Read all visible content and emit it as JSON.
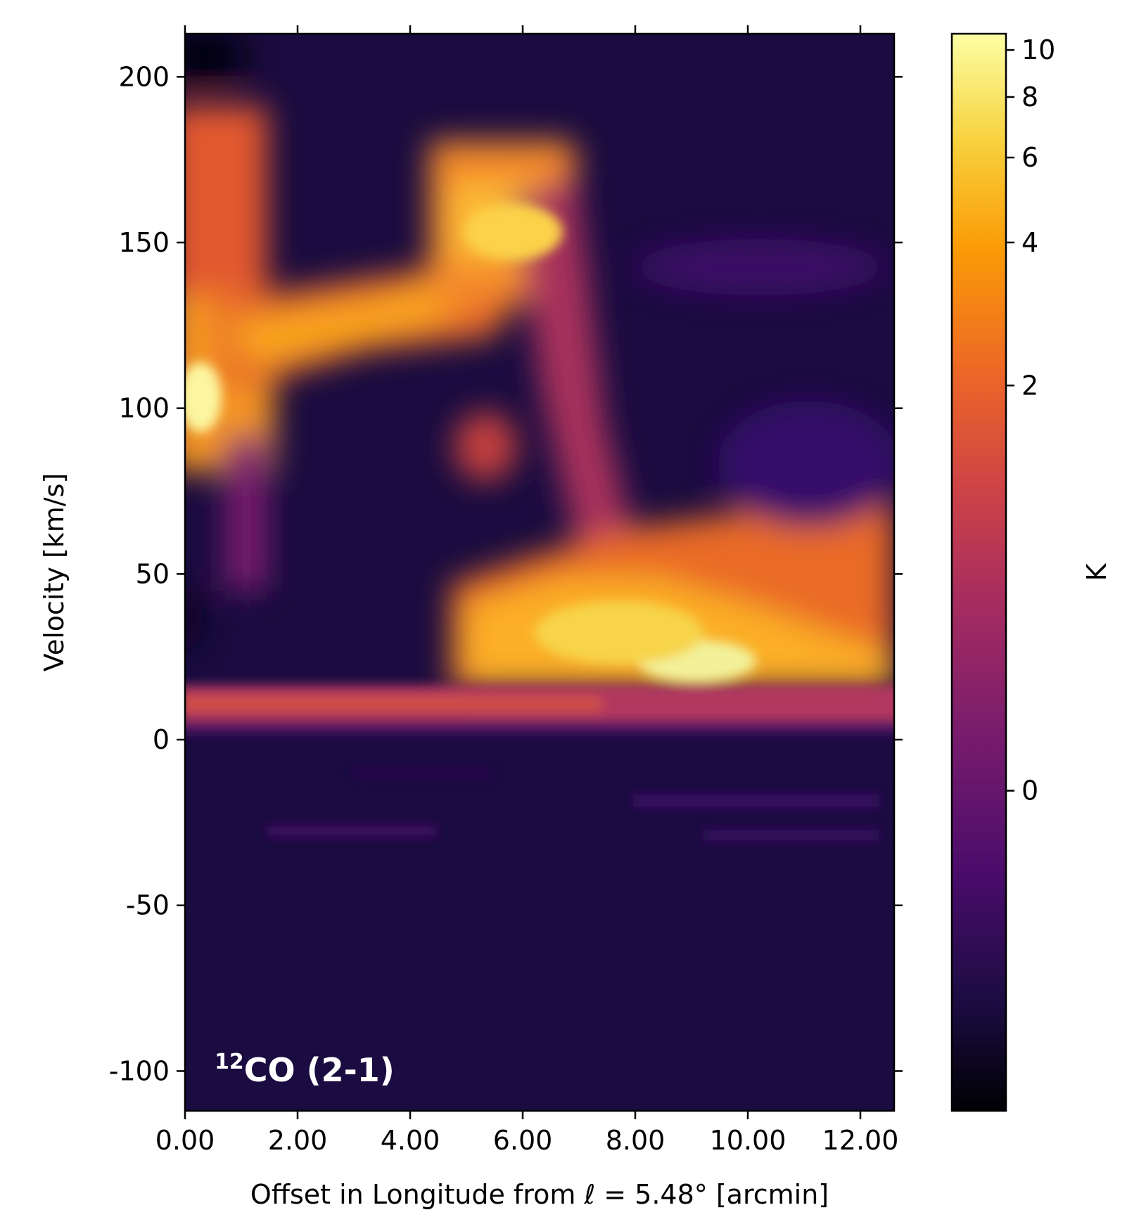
{
  "chart_data": {
    "type": "heatmap",
    "title": "",
    "xlabel_prefix": "Offset in Longitude from ",
    "xlabel_symbol": "ℓ",
    "xlabel_suffix": " = 5.48° [arcmin]",
    "ylabel": "Velocity [km/s]",
    "colorbar_label": "K",
    "annotation": {
      "sup": "12",
      "text": "CO (2-1)"
    },
    "xlim": [
      0.0,
      12.6
    ],
    "ylim": [
      -112,
      213
    ],
    "x_ticks": [
      "0.00",
      "2.00",
      "4.00",
      "6.00",
      "8.00",
      "10.00",
      "12.00"
    ],
    "x_tick_values": [
      0,
      2,
      4,
      6,
      8,
      10,
      12
    ],
    "y_ticks": [
      "200",
      "150",
      "100",
      "50",
      "0",
      "-50",
      "-100"
    ],
    "y_tick_values": [
      200,
      150,
      100,
      50,
      0,
      -50,
      -100
    ],
    "colorbar_ticks": [
      "10",
      "8",
      "6",
      "4",
      "2",
      "0"
    ],
    "colorbar_tick_values": [
      10,
      8,
      6,
      4,
      2,
      0
    ],
    "colorbar_range": [
      -1.3,
      10.8
    ],
    "colormap": "inferno",
    "colormap_stops": [
      "#000004",
      "#1b0c41",
      "#4a0c6b",
      "#781c6d",
      "#a52c60",
      "#cf4446",
      "#ed6925",
      "#fb9b06",
      "#f7d13d",
      "#fcffa4"
    ],
    "background_level": 0.2,
    "emission_features": [
      {
        "x": [
          0.0,
          1.5
        ],
        "v": [
          80,
          195
        ],
        "peak_K": 8.5
      },
      {
        "x": [
          0.2,
          0.6
        ],
        "v": [
          90,
          110
        ],
        "peak_K": 10.5
      },
      {
        "x": [
          1.5,
          4.5
        ],
        "v": [
          105,
          140
        ],
        "peak_K": 7.5
      },
      {
        "x": [
          4.5,
          6.8
        ],
        "v": [
          130,
          180
        ],
        "peak_K": 8.0
      },
      {
        "x": [
          5.0,
          5.8
        ],
        "v": [
          80,
          95
        ],
        "peak_K": 3.5
      },
      {
        "x": [
          4.8,
          12.6
        ],
        "v": [
          18,
          60
        ],
        "peak_K": 8.5
      },
      {
        "x": [
          8.5,
          9.5
        ],
        "v": [
          20,
          30
        ],
        "peak_K": 10.2
      },
      {
        "x": [
          0.0,
          12.6
        ],
        "v": [
          2,
          16
        ],
        "peak_K": 3.0
      },
      {
        "x": [
          7.5,
          12.0
        ],
        "v": [
          120,
          150
        ],
        "peak_K": 0.8
      }
    ]
  }
}
